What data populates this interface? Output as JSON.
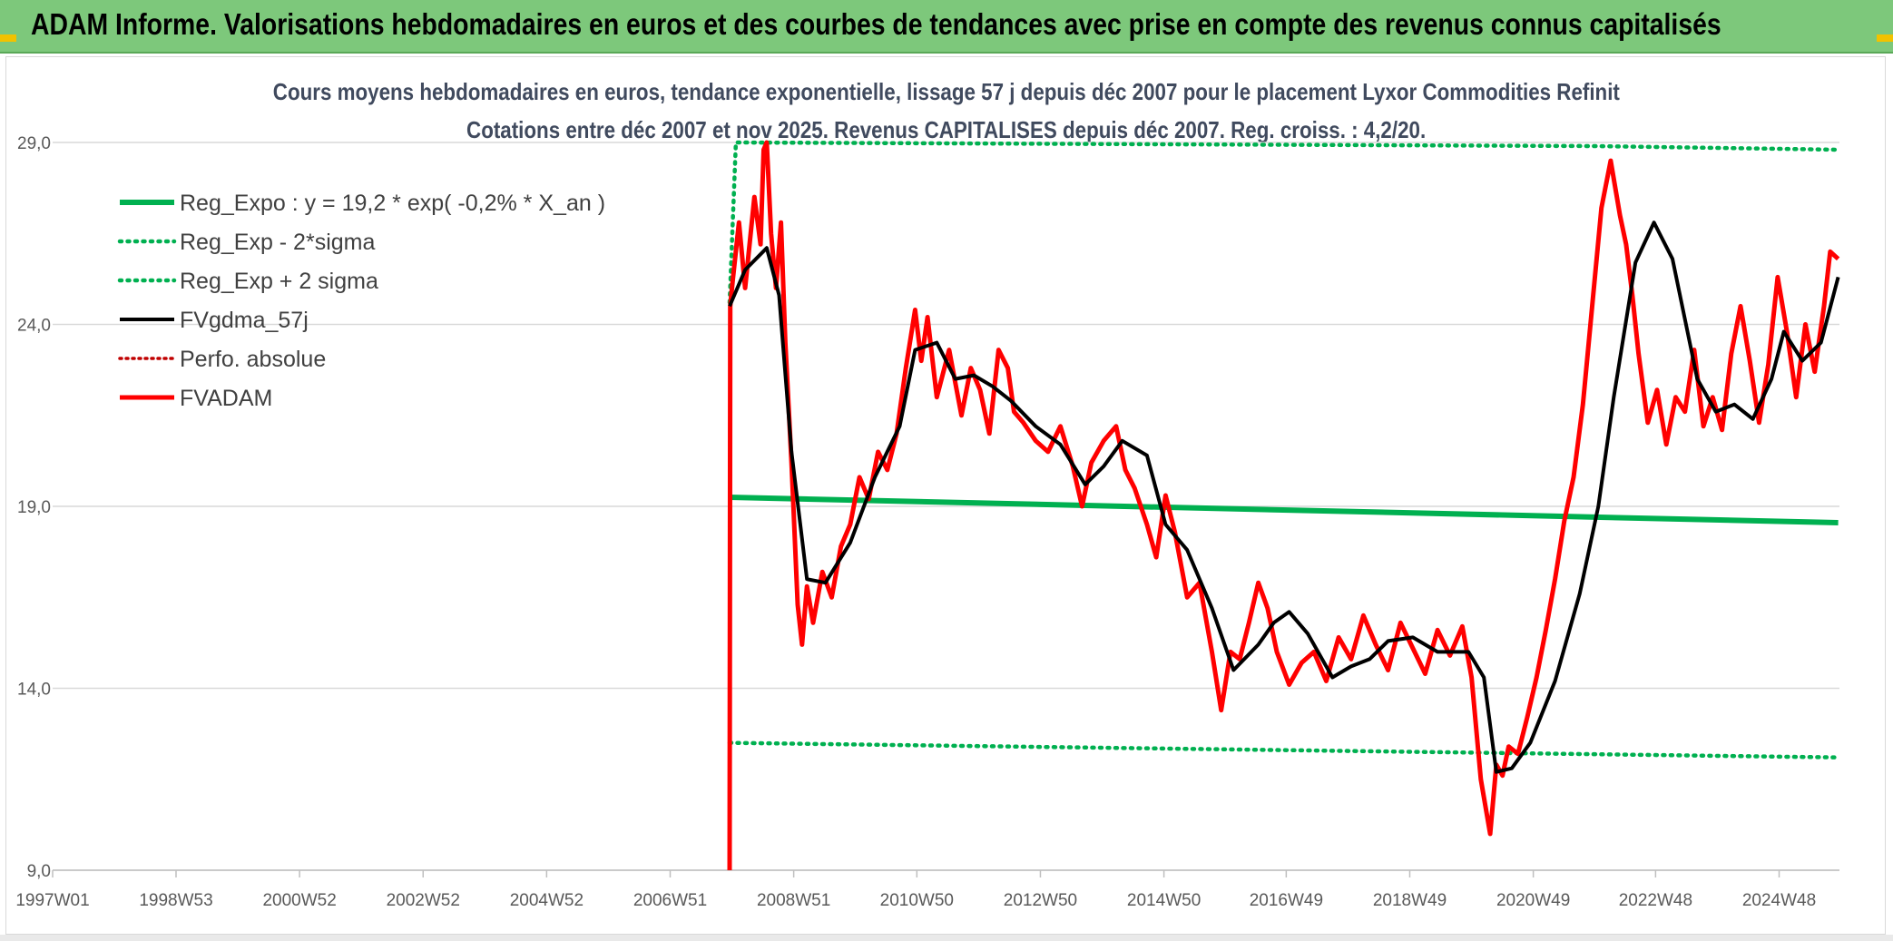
{
  "banner": {
    "title": "ADAM Informe. Valorisations hebdomadaires en euros et des courbes de tendances avec prise en compte des revenus connus capitalisés"
  },
  "chart_data": {
    "type": "line",
    "title": "Cours moyens hebdomadaires en euros, tendance exponentielle, lissage 57 j depuis déc 2007 pour le placement Lyxor Commodities Refinit",
    "subtitle": "Cotations entre déc 2007 et nov 2025. Revenus CAPITALISES depuis déc 2007. Reg. croiss. : 4,2/20.",
    "xlabel": "",
    "ylabel": "",
    "ylim": [
      9,
      29
    ],
    "xlim": [
      1997.0,
      2025.9
    ],
    "y_ticks": [
      9,
      14,
      19,
      24,
      29
    ],
    "y_tick_labels": [
      "9,0",
      "14,0",
      "19,0",
      "24,0",
      "29,0"
    ],
    "x_ticks": [
      1997.0,
      1998.996,
      2000.994,
      2002.992,
      2004.99,
      2006.988,
      2008.986,
      2010.978,
      2012.976,
      2014.974,
      2016.952,
      2018.95,
      2020.948,
      2022.926,
      2024.924
    ],
    "x_tick_labels": [
      "1997W01",
      "1998W53",
      "2000W52",
      "2002W52",
      "2004W52",
      "2006W51",
      "2008W51",
      "2010W50",
      "2012W50",
      "2014W50",
      "2016W49",
      "2018W49",
      "2020W49",
      "2022W48",
      "2024W48"
    ],
    "grid": "horizontal",
    "legend_position": "top-left",
    "colors": {
      "reg_expo": "#00b050",
      "sigma": "#00b050",
      "fvgdma": "#000000",
      "perfo": "#c00000",
      "fvadam": "#ff0000"
    },
    "series": [
      {
        "name": "Reg_Expo : y = 19,2 * exp( -0,2% *  X_an )",
        "style": "solid",
        "x": [
          2007.95,
          2025.88
        ],
        "y": [
          19.25,
          18.55
        ]
      },
      {
        "name": "Reg_Exp - 2*sigma",
        "style": "dotted",
        "x": [
          2007.95,
          2025.88
        ],
        "y": [
          12.5,
          12.1
        ]
      },
      {
        "name": "Reg_Exp + 2 sigma",
        "style": "dotted",
        "x": [
          2007.95,
          2008.05,
          2021.95,
          2025.88
        ],
        "y": [
          24.6,
          29.0,
          28.9,
          28.8
        ]
      },
      {
        "name": "FVgdma_57j",
        "style": "solid",
        "x": [
          2007.95,
          2008.2,
          2008.55,
          2008.75,
          2008.95,
          2009.2,
          2009.5,
          2009.9,
          2010.3,
          2010.7,
          2010.95,
          2011.3,
          2011.6,
          2011.9,
          2012.2,
          2012.5,
          2012.9,
          2013.3,
          2013.7,
          2014.0,
          2014.3,
          2014.7,
          2015.0,
          2015.35,
          2015.75,
          2016.1,
          2016.5,
          2016.75,
          2017.0,
          2017.3,
          2017.7,
          2018.0,
          2018.3,
          2018.6,
          2019.0,
          2019.4,
          2019.9,
          2020.15,
          2020.35,
          2020.6,
          2020.9,
          2021.3,
          2021.7,
          2022.0,
          2022.25,
          2022.6,
          2022.9,
          2023.2,
          2023.6,
          2023.9,
          2024.2,
          2024.5,
          2024.8,
          2025.0,
          2025.3,
          2025.6,
          2025.88
        ],
        "y": [
          24.5,
          25.5,
          26.1,
          24.8,
          20.5,
          17.0,
          16.9,
          18.0,
          19.8,
          21.2,
          23.3,
          23.5,
          22.5,
          22.6,
          22.3,
          21.9,
          21.2,
          20.7,
          19.6,
          20.1,
          20.8,
          20.4,
          18.5,
          17.8,
          16.2,
          14.5,
          15.2,
          15.8,
          16.1,
          15.5,
          14.3,
          14.6,
          14.8,
          15.3,
          15.4,
          15.0,
          15.0,
          14.3,
          11.7,
          11.8,
          12.5,
          14.2,
          16.6,
          19.0,
          22.0,
          25.7,
          26.8,
          25.8,
          22.5,
          21.6,
          21.8,
          21.4,
          22.5,
          23.8,
          23.0,
          23.5,
          25.3
        ]
      },
      {
        "name": "Perfo. absolue",
        "style": "dotted",
        "x": [],
        "y": []
      },
      {
        "name": "FVADAM",
        "style": "solid",
        "x": [
          2007.95,
          2007.96,
          2008.0,
          2008.1,
          2008.2,
          2008.35,
          2008.45,
          2008.5,
          2008.55,
          2008.62,
          2008.7,
          2008.78,
          2008.85,
          2008.95,
          2009.05,
          2009.12,
          2009.2,
          2009.3,
          2009.45,
          2009.6,
          2009.75,
          2009.9,
          2010.05,
          2010.2,
          2010.35,
          2010.5,
          2010.65,
          2010.8,
          2010.95,
          2011.05,
          2011.15,
          2011.3,
          2011.5,
          2011.7,
          2011.85,
          2012.0,
          2012.15,
          2012.3,
          2012.45,
          2012.55,
          2012.7,
          2012.9,
          2013.1,
          2013.3,
          2013.5,
          2013.65,
          2013.8,
          2014.0,
          2014.2,
          2014.35,
          2014.5,
          2014.7,
          2014.85,
          2015.0,
          2015.15,
          2015.35,
          2015.55,
          2015.75,
          2015.9,
          2016.05,
          2016.2,
          2016.35,
          2016.5,
          2016.65,
          2016.8,
          2017.0,
          2017.2,
          2017.4,
          2017.6,
          2017.8,
          2018.0,
          2018.2,
          2018.4,
          2018.6,
          2018.8,
          2019.0,
          2019.2,
          2019.4,
          2019.6,
          2019.8,
          2019.95,
          2020.1,
          2020.25,
          2020.35,
          2020.45,
          2020.55,
          2020.7,
          2020.85,
          2021.0,
          2021.15,
          2021.3,
          2021.45,
          2021.6,
          2021.75,
          2021.9,
          2022.05,
          2022.2,
          2022.35,
          2022.45,
          2022.55,
          2022.65,
          2022.8,
          2022.95,
          2023.1,
          2023.25,
          2023.4,
          2023.55,
          2023.7,
          2023.85,
          2024.0,
          2024.15,
          2024.3,
          2024.45,
          2024.6,
          2024.75,
          2024.9,
          2025.05,
          2025.2,
          2025.35,
          2025.5,
          2025.65,
          2025.75,
          2025.88
        ],
        "y": [
          9.0,
          24.5,
          25.2,
          26.8,
          25.0,
          27.5,
          26.2,
          28.8,
          29.0,
          26.5,
          25.0,
          26.8,
          23.5,
          20.2,
          16.3,
          15.2,
          16.8,
          15.8,
          17.2,
          16.5,
          17.9,
          18.5,
          19.8,
          19.2,
          20.5,
          20.0,
          21.0,
          22.8,
          24.4,
          23.0,
          24.2,
          22.0,
          23.3,
          21.5,
          22.8,
          22.2,
          21.0,
          23.3,
          22.8,
          21.6,
          21.3,
          20.8,
          20.5,
          21.2,
          20.1,
          19.0,
          20.2,
          20.8,
          21.2,
          20.0,
          19.5,
          18.5,
          17.6,
          19.3,
          18.3,
          16.5,
          16.9,
          15.0,
          13.4,
          15.0,
          14.8,
          15.8,
          16.9,
          16.2,
          15.0,
          14.1,
          14.7,
          15.0,
          14.2,
          15.4,
          14.8,
          16.0,
          15.2,
          14.5,
          15.8,
          15.1,
          14.4,
          15.6,
          14.9,
          15.7,
          14.3,
          11.5,
          10.0,
          11.9,
          11.6,
          12.4,
          12.2,
          13.2,
          14.3,
          15.6,
          17.0,
          18.6,
          19.8,
          21.8,
          24.5,
          27.2,
          28.5,
          27.0,
          26.2,
          24.8,
          23.2,
          21.3,
          22.2,
          20.7,
          22.0,
          21.6,
          23.3,
          21.2,
          22.0,
          21.1,
          23.2,
          24.5,
          23.0,
          21.3,
          22.9,
          25.3,
          23.8,
          22.0,
          24.0,
          22.7,
          24.5,
          26.0,
          25.8
        ]
      }
    ]
  }
}
